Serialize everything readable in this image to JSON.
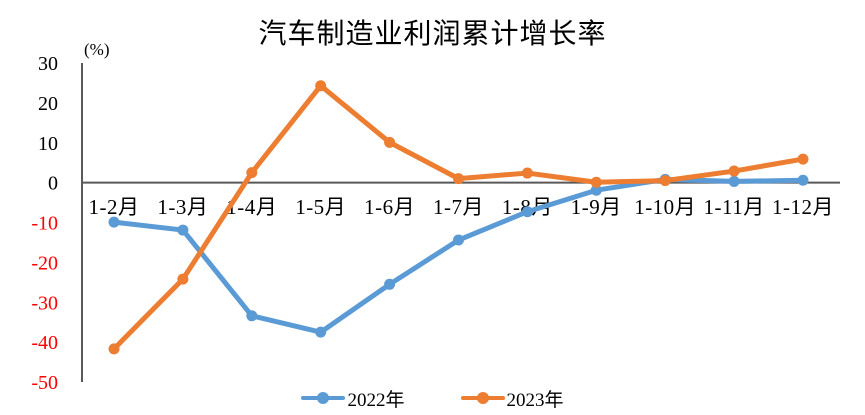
{
  "chart_data": {
    "type": "line",
    "title": "汽车制造业利润累计增长率",
    "ylabel": "(%)",
    "xlabel": "",
    "categories": [
      "1-2月",
      "1-3月",
      "1-4月",
      "1-5月",
      "1-6月",
      "1-7月",
      "1-8月",
      "1-9月",
      "1-10月",
      "1-11月",
      "1-12月"
    ],
    "series": [
      {
        "name": "2022年",
        "color": "#5B9BD5",
        "values": [
          -9.9,
          -11.9,
          -33.4,
          -37.5,
          -25.5,
          -14.4,
          -7.3,
          -1.9,
          0.8,
          0.3,
          0.6
        ]
      },
      {
        "name": "2023年",
        "color": "#ED7D31",
        "values": [
          -41.7,
          -24.2,
          2.5,
          24.3,
          10.1,
          1.0,
          2.4,
          0.1,
          0.5,
          2.9,
          5.9
        ]
      }
    ],
    "ylim": [
      -50,
      30
    ],
    "ytick_step": 10,
    "grid": false,
    "legend_position": "bottom",
    "axis_color": "#595959",
    "positive_tick_color": "#000000",
    "negative_tick_color": "#FF0000"
  }
}
